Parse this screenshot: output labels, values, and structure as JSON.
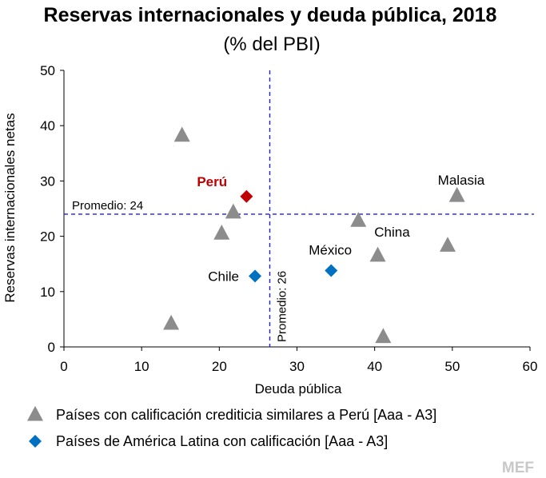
{
  "chart_data": {
    "type": "scatter",
    "title": "Reservas internacionales y deuda pública, 2018",
    "subtitle": "(% del PBI)",
    "xlabel": "Deuda pública",
    "ylabel": "Reservas internacionales netas",
    "xlim": [
      0,
      60
    ],
    "ylim": [
      0,
      50
    ],
    "x_ticks": [
      "0",
      "10",
      "20",
      "30",
      "40",
      "50",
      "60"
    ],
    "y_ticks": [
      "0",
      "10",
      "20",
      "30",
      "40",
      "50"
    ],
    "x_tick_values": [
      0,
      10,
      20,
      30,
      40,
      50,
      60
    ],
    "y_tick_values": [
      0,
      10,
      20,
      30,
      40,
      50
    ],
    "reference_lines": {
      "horizontal": {
        "value": 24,
        "label": "Promedio: 24"
      },
      "vertical": {
        "value": 26.5,
        "label": "Promedio: 26"
      }
    },
    "series": [
      {
        "name": "Países con calificación crediticia similares a Perú [Aaa - A3]",
        "marker": "triangle",
        "color": "#8c8c8c",
        "points": [
          {
            "x": 15.2,
            "y": 38.2,
            "label": ""
          },
          {
            "x": 21.8,
            "y": 24.3,
            "label": ""
          },
          {
            "x": 20.3,
            "y": 20.5,
            "label": ""
          },
          {
            "x": 13.8,
            "y": 4.2,
            "label": ""
          },
          {
            "x": 37.9,
            "y": 22.8,
            "label": "China"
          },
          {
            "x": 40.4,
            "y": 16.5,
            "label": ""
          },
          {
            "x": 41.1,
            "y": 1.8,
            "label": ""
          },
          {
            "x": 49.4,
            "y": 18.3,
            "label": ""
          },
          {
            "x": 50.6,
            "y": 27.3,
            "label": "Malasia"
          }
        ]
      },
      {
        "name": "Países de América Latina con calificación  [Aaa - A3]",
        "marker": "diamond",
        "color": "#0070c0",
        "points": [
          {
            "x": 24.6,
            "y": 12.8,
            "label": "Chile"
          },
          {
            "x": 34.4,
            "y": 13.8,
            "label": "México"
          }
        ]
      },
      {
        "name": "Perú",
        "marker": "diamond",
        "color": "#c00000",
        "in_legend": false,
        "points": [
          {
            "x": 23.5,
            "y": 27.2,
            "label": "Perú"
          }
        ]
      }
    ],
    "source": "MEF"
  }
}
